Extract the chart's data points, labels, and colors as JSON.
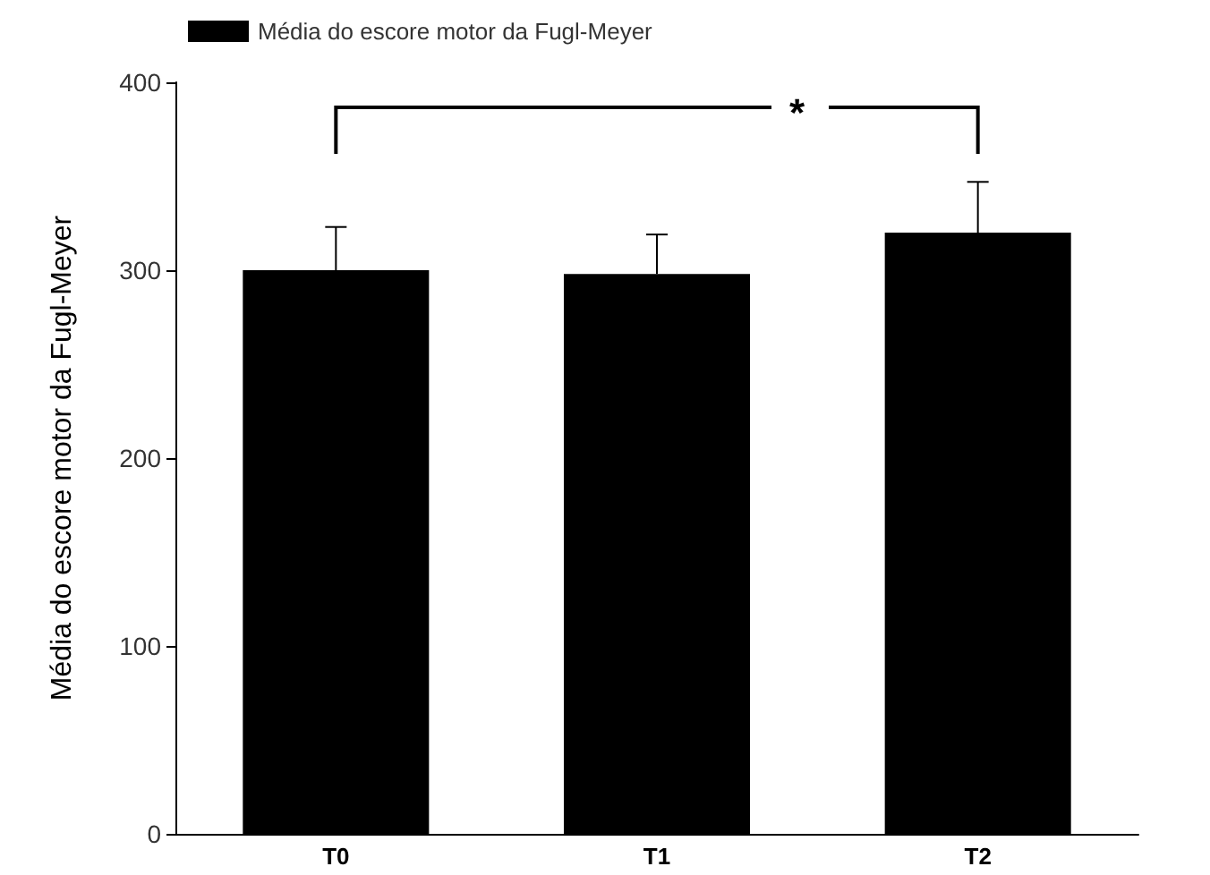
{
  "chart_data": {
    "type": "bar",
    "ylabel": "Média do escore motor da Fugl-Meyer",
    "categories": [
      "T0",
      "T1",
      "T2"
    ],
    "series": [
      {
        "name": "Média do escore motor da Fugl-Meyer",
        "color": "#000000",
        "values": [
          300,
          298,
          320
        ],
        "errors": [
          [
            300,
            323
          ],
          [
            298,
            319
          ],
          [
            320,
            347
          ]
        ]
      }
    ],
    "ylim": [
      0,
      400
    ],
    "yticks": [
      0,
      100,
      200,
      300,
      400
    ],
    "grid": false,
    "legend": "top left",
    "annotations": [
      "*"
    ]
  }
}
